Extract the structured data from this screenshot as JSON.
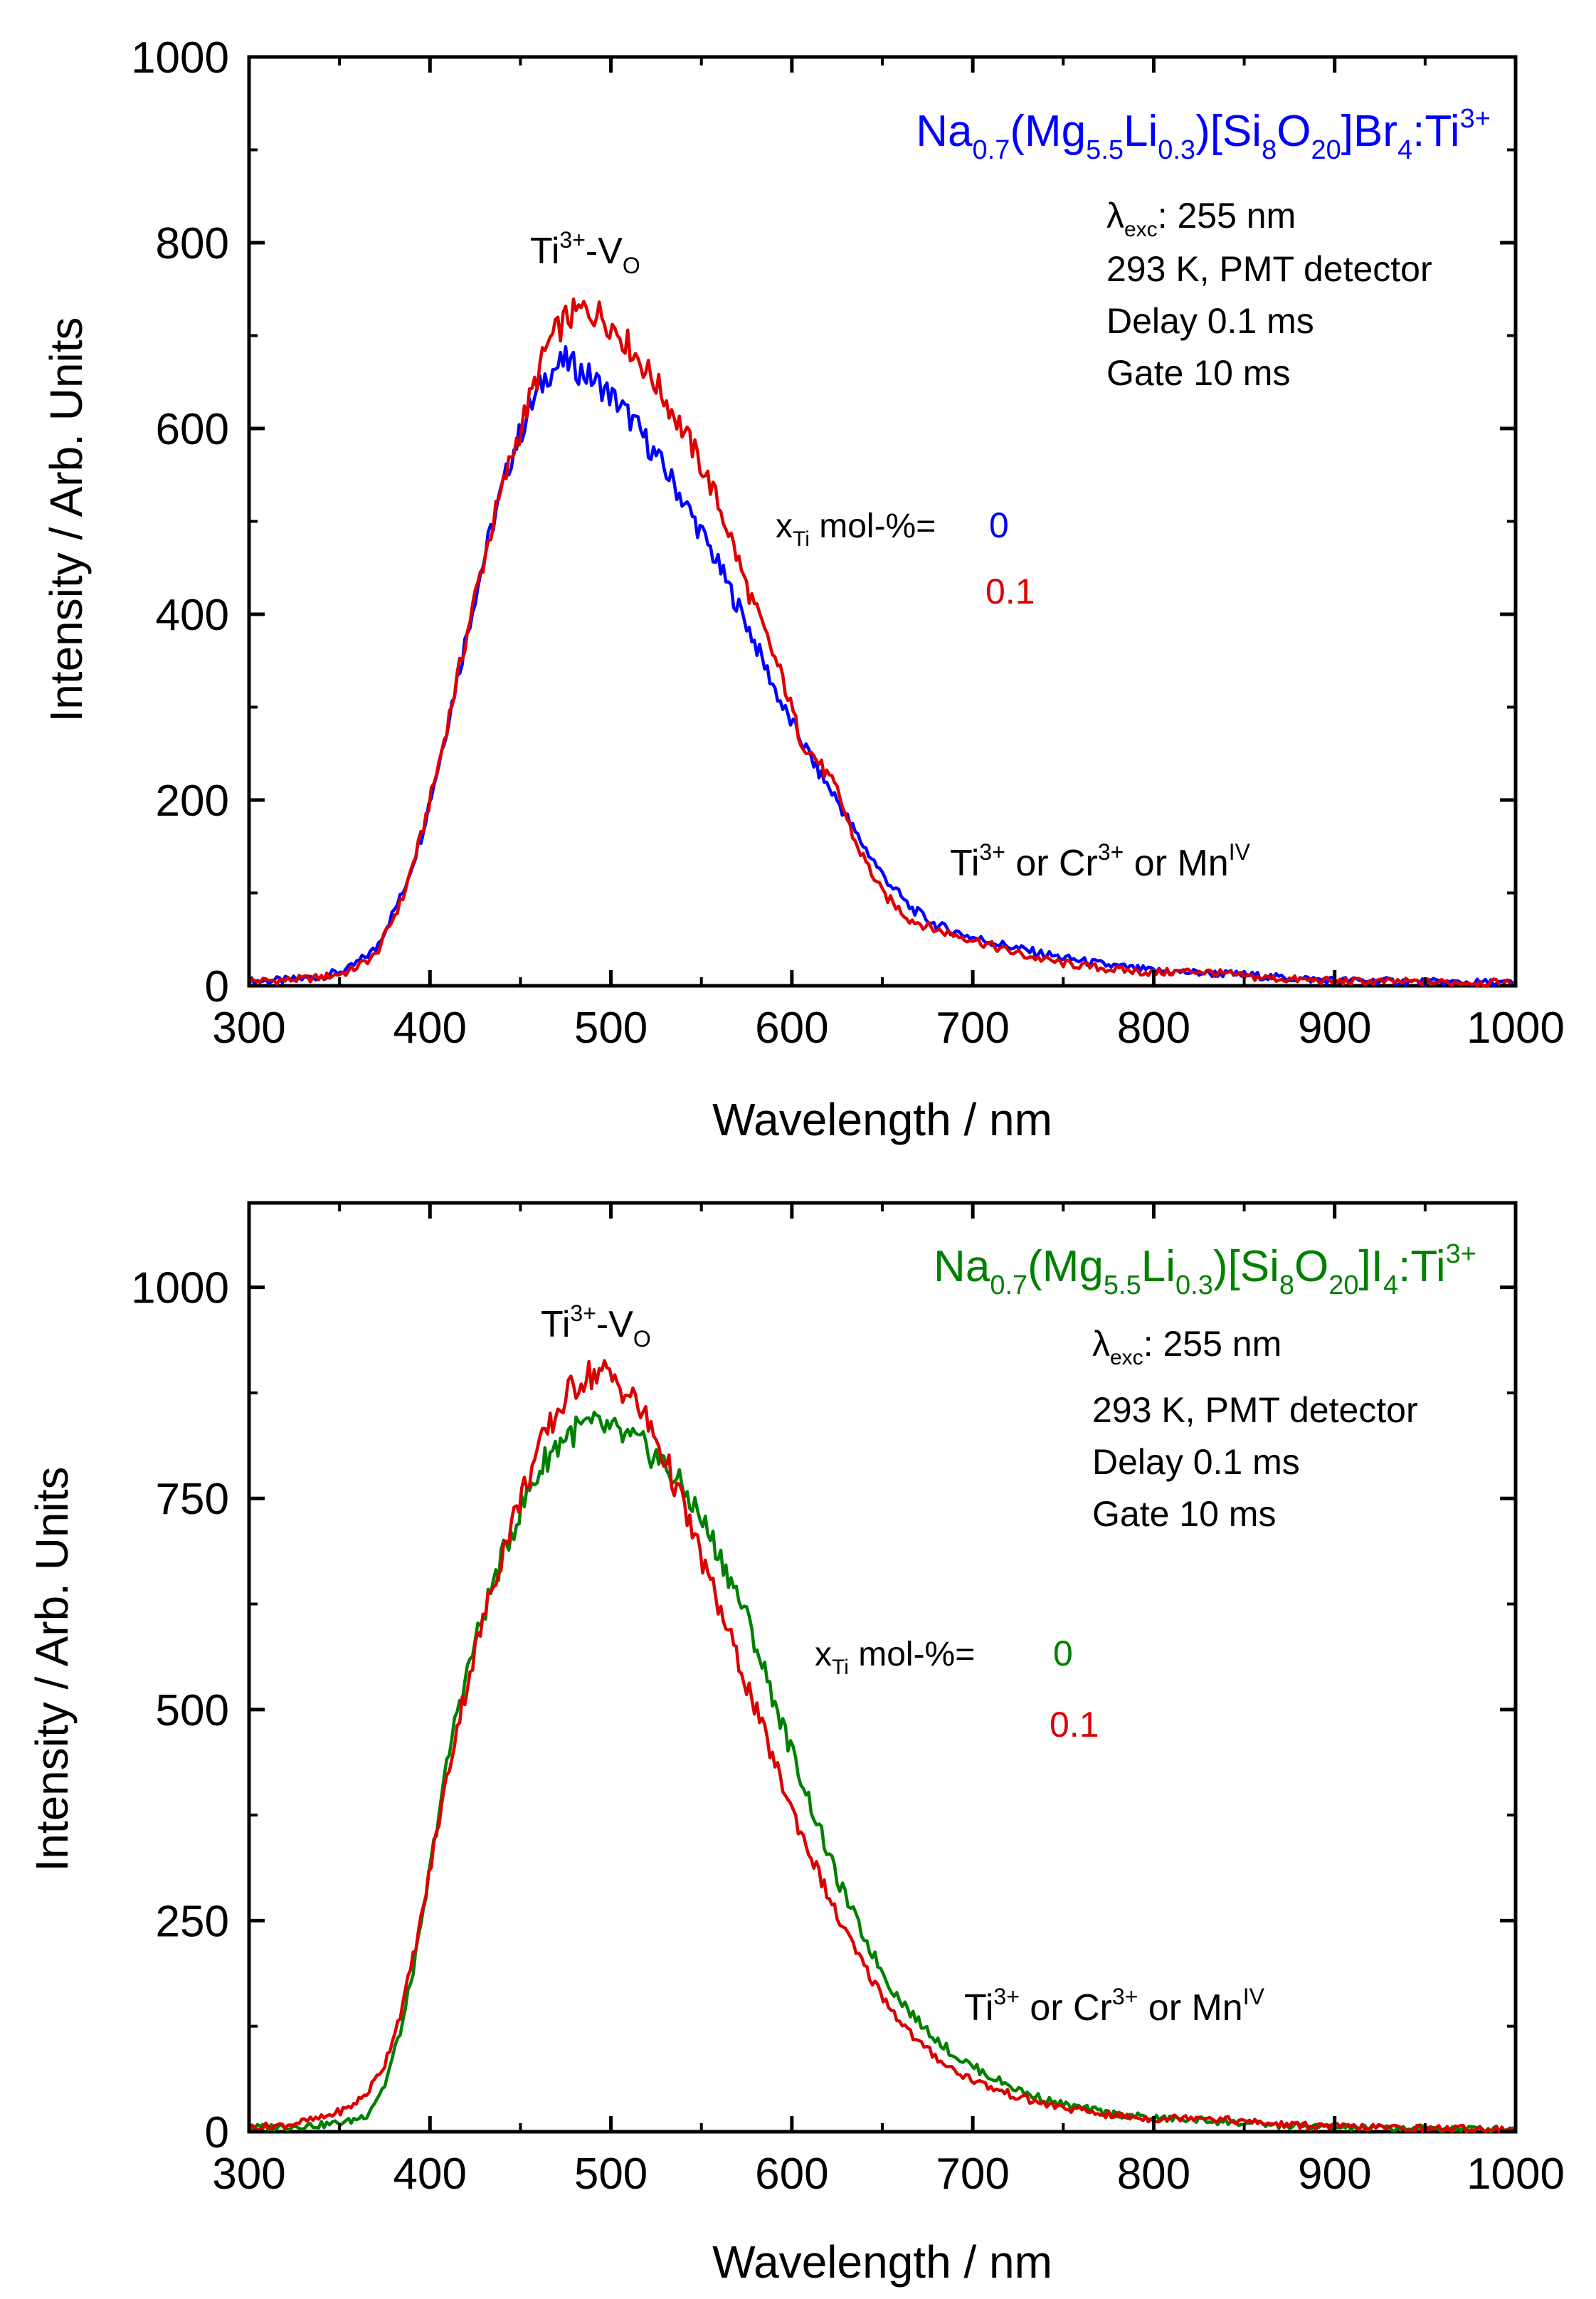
{
  "chart_data": [
    {
      "type": "line",
      "title_parts": {
        "a": "Na",
        "a_sub": "0.7",
        "b": "(Mg",
        "b_sub": "5.5",
        "c": "Li",
        "c_sub": "0.3",
        "d": ")[Si",
        "d_sub": "8",
        "e": "O",
        "e_sub": "20",
        "f": "]Br",
        "f_sub": "4",
        "g": ":Ti",
        "g_sup": "3+"
      },
      "title_color": "#0000ff",
      "xlabel": "Wavelength / nm",
      "ylabel": "Intensity / Arb. Units",
      "xlim": [
        300,
        1000
      ],
      "ylim": [
        0,
        1000
      ],
      "xticks": [
        300,
        400,
        500,
        600,
        700,
        800,
        900,
        1000
      ],
      "yticks": [
        0,
        200,
        400,
        600,
        800,
        1000
      ],
      "conditions": {
        "lambda": "λ",
        "lambda_sub": "exc",
        "lambda_value": ": 255 nm",
        "line2": "293 K, PMT detector",
        "line3": "Delay 0.1 ms",
        "line4": "Gate 10 ms"
      },
      "peak_label": {
        "ti": "Ti",
        "ti_sup": "3+",
        "dash": "-V",
        "v_sub": "O"
      },
      "shoulder_label": {
        "ti": "Ti",
        "ti_sup": "3+",
        "or1": " or Cr",
        "cr_sup": "3+",
        "or2": " or Mn",
        "mn_sup": "IV"
      },
      "legend": {
        "x": "x",
        "x_sub": "Ti",
        "prefix": " mol-%= "
      },
      "series": [
        {
          "name": "0",
          "color": "#0000ff",
          "points": [
            [
              300,
              5
            ],
            [
              320,
              6
            ],
            [
              340,
              10
            ],
            [
              355,
              18
            ],
            [
              370,
              40
            ],
            [
              385,
              100
            ],
            [
              395,
              160
            ],
            [
              405,
              240
            ],
            [
              415,
              330
            ],
            [
              425,
              420
            ],
            [
              435,
              500
            ],
            [
              445,
              570
            ],
            [
              455,
              620
            ],
            [
              465,
              660
            ],
            [
              475,
              672
            ],
            [
              485,
              660
            ],
            [
              495,
              645
            ],
            [
              505,
              625
            ],
            [
              515,
              600
            ],
            [
              525,
              570
            ],
            [
              535,
              540
            ],
            [
              545,
              505
            ],
            [
              555,
              470
            ],
            [
              565,
              430
            ],
            [
              575,
              390
            ],
            [
              585,
              345
            ],
            [
              595,
              300
            ],
            [
              605,
              265
            ],
            [
              615,
              230
            ],
            [
              625,
              200
            ],
            [
              635,
              165
            ],
            [
              650,
              120
            ],
            [
              665,
              85
            ],
            [
              680,
              65
            ],
            [
              700,
              52
            ],
            [
              715,
              45
            ],
            [
              730,
              38
            ],
            [
              750,
              30
            ],
            [
              775,
              22
            ],
            [
              800,
              16
            ],
            [
              825,
              14
            ],
            [
              850,
              12
            ],
            [
              875,
              8
            ],
            [
              900,
              6
            ],
            [
              950,
              4
            ],
            [
              1000,
              3
            ]
          ]
        },
        {
          "name": "0.1",
          "color": "#dd0000",
          "points": [
            [
              300,
              5
            ],
            [
              320,
              6
            ],
            [
              340,
              9
            ],
            [
              355,
              15
            ],
            [
              370,
              33
            ],
            [
              385,
              95
            ],
            [
              395,
              160
            ],
            [
              405,
              240
            ],
            [
              415,
              330
            ],
            [
              425,
              420
            ],
            [
              435,
              500
            ],
            [
              445,
              570
            ],
            [
              455,
              630
            ],
            [
              465,
              690
            ],
            [
              475,
              718
            ],
            [
              485,
              728
            ],
            [
              495,
              722
            ],
            [
              505,
              702
            ],
            [
              515,
              676
            ],
            [
              525,
              648
            ],
            [
              535,
              615
            ],
            [
              545,
              580
            ],
            [
              555,
              540
            ],
            [
              565,
              490
            ],
            [
              575,
              430
            ],
            [
              585,
              380
            ],
            [
              595,
              330
            ],
            [
              605,
              265
            ],
            [
              615,
              240
            ],
            [
              625,
              210
            ],
            [
              635,
              155
            ],
            [
              650,
              100
            ],
            [
              665,
              72
            ],
            [
              680,
              60
            ],
            [
              700,
              50
            ],
            [
              715,
              40
            ],
            [
              730,
              32
            ],
            [
              750,
              24
            ],
            [
              775,
              18
            ],
            [
              800,
              14
            ],
            [
              825,
              16
            ],
            [
              850,
              10
            ],
            [
              875,
              7
            ],
            [
              900,
              5
            ],
            [
              950,
              4
            ],
            [
              1000,
              3
            ]
          ]
        }
      ],
      "legend_values": [
        {
          "text": "0",
          "color": "#0000ff"
        },
        {
          "text": "0.1",
          "color": "#dd0000"
        }
      ]
    },
    {
      "type": "line",
      "title_parts": {
        "a": "Na",
        "a_sub": "0.7",
        "b": "(Mg",
        "b_sub": "5.5",
        "c": "Li",
        "c_sub": "0.3",
        "d": ")[Si",
        "d_sub": "8",
        "e": "O",
        "e_sub": "20",
        "f": "]I",
        "f_sub": "4",
        "g": ":Ti",
        "g_sup": "3+"
      },
      "title_color": "#008000",
      "xlabel": "Wavelength / nm",
      "ylabel": "Intensity / Arb. Units",
      "xlim": [
        300,
        1000
      ],
      "ylim": [
        0,
        1100
      ],
      "xticks": [
        300,
        400,
        500,
        600,
        700,
        800,
        900,
        1000
      ],
      "yticks": [
        0,
        250,
        500,
        750,
        1000
      ],
      "conditions": {
        "lambda": "λ",
        "lambda_sub": "exc",
        "lambda_value": ": 255 nm",
        "line2": "293 K, PMT detector",
        "line3": "Delay 0.1 ms",
        "line4": "Gate 10 ms"
      },
      "peak_label": {
        "ti": "Ti",
        "ti_sup": "3+",
        "dash": "-V",
        "v_sub": "O"
      },
      "shoulder_label": {
        "ti": "Ti",
        "ti_sup": "3+",
        "or1": " or Cr",
        "cr_sup": "3+",
        "or2": " or Mn",
        "mn_sup": "IV"
      },
      "legend": {
        "x": "x",
        "x_sub": "Ti",
        "prefix": " mol-%= "
      },
      "series": [
        {
          "name": "0",
          "color": "#008000",
          "points": [
            [
              300,
              5
            ],
            [
              320,
              6
            ],
            [
              340,
              8
            ],
            [
              355,
              12
            ],
            [
              365,
              20
            ],
            [
              375,
              55
            ],
            [
              385,
              130
            ],
            [
              395,
              240
            ],
            [
              405,
              380
            ],
            [
              415,
              500
            ],
            [
              425,
              580
            ],
            [
              435,
              650
            ],
            [
              445,
              710
            ],
            [
              455,
              760
            ],
            [
              465,
              800
            ],
            [
              475,
              825
            ],
            [
              485,
              835
            ],
            [
              495,
              835
            ],
            [
              505,
              825
            ],
            [
              515,
              815
            ],
            [
              525,
              800
            ],
            [
              535,
              775
            ],
            [
              545,
              745
            ],
            [
              555,
              705
            ],
            [
              565,
              660
            ],
            [
              575,
              610
            ],
            [
              585,
              545
            ],
            [
              595,
              480
            ],
            [
              605,
              420
            ],
            [
              615,
              360
            ],
            [
              625,
              300
            ],
            [
              640,
              230
            ],
            [
              655,
              170
            ],
            [
              670,
              130
            ],
            [
              690,
              90
            ],
            [
              710,
              65
            ],
            [
              730,
              45
            ],
            [
              750,
              32
            ],
            [
              775,
              22
            ],
            [
              800,
              16
            ],
            [
              825,
              14
            ],
            [
              850,
              10
            ],
            [
              875,
              7
            ],
            [
              900,
              5
            ],
            [
              950,
              4
            ],
            [
              1000,
              3
            ]
          ]
        },
        {
          "name": "0.1",
          "color": "#dd0000",
          "points": [
            [
              300,
              5
            ],
            [
              320,
              8
            ],
            [
              340,
              16
            ],
            [
              355,
              28
            ],
            [
              365,
              45
            ],
            [
              375,
              80
            ],
            [
              385,
              150
            ],
            [
              395,
              250
            ],
            [
              405,
              370
            ],
            [
              415,
              480
            ],
            [
              425,
              570
            ],
            [
              435,
              650
            ],
            [
              445,
              720
            ],
            [
              455,
              780
            ],
            [
              465,
              830
            ],
            [
              475,
              870
            ],
            [
              485,
              895
            ],
            [
              495,
              900
            ],
            [
              505,
              885
            ],
            [
              515,
              860
            ],
            [
              525,
              820
            ],
            [
              535,
              770
            ],
            [
              545,
              710
            ],
            [
              555,
              650
            ],
            [
              565,
              590
            ],
            [
              575,
              530
            ],
            [
              585,
              470
            ],
            [
              595,
              410
            ],
            [
              605,
              355
            ],
            [
              615,
              305
            ],
            [
              625,
              255
            ],
            [
              640,
              195
            ],
            [
              655,
              145
            ],
            [
              670,
              105
            ],
            [
              690,
              72
            ],
            [
              710,
              52
            ],
            [
              730,
              38
            ],
            [
              750,
              28
            ],
            [
              775,
              20
            ],
            [
              800,
              15
            ],
            [
              825,
              18
            ],
            [
              850,
              12
            ],
            [
              875,
              8
            ],
            [
              900,
              6
            ],
            [
              950,
              4
            ],
            [
              1000,
              3
            ]
          ]
        }
      ],
      "legend_values": [
        {
          "text": "0",
          "color": "#008000"
        },
        {
          "text": "0.1",
          "color": "#dd0000"
        }
      ]
    }
  ]
}
